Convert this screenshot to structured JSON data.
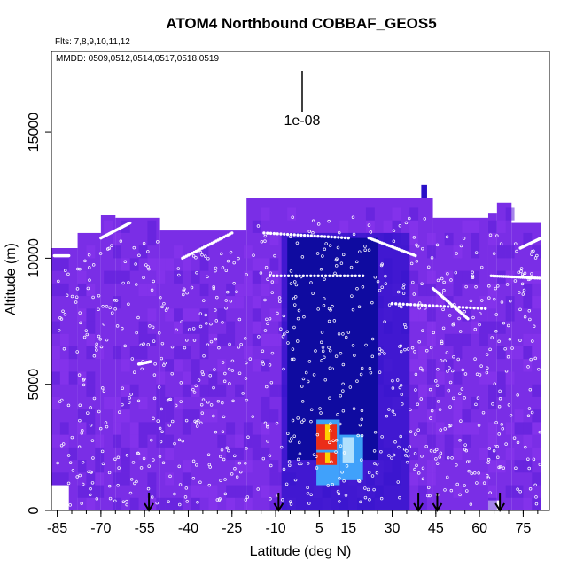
{
  "chart_data": {
    "type": "heatmap",
    "title": "ATOM4 Northbound COBBAF_GEOS5",
    "subtitle_flights": "Flts: 7,8,9,10,11,12",
    "subtitle_dates": "MMDD: 0509,0512,0514,0517,0518,0519",
    "scale_bar_label": "1e-08",
    "xlabel": "Latitude (deg N)",
    "ylabel": "Altitude (m)",
    "xlim": [
      -87,
      84
    ],
    "ylim": [
      0,
      18200
    ],
    "x_ticks": [
      -85,
      -70,
      -55,
      -40,
      -25,
      -10,
      5,
      15,
      30,
      45,
      60,
      75
    ],
    "x_tick_labels": [
      "-85",
      "-70",
      "-55",
      "-40",
      "-25",
      "-10",
      "5",
      "15",
      "30",
      "45",
      "60",
      "75"
    ],
    "x_minor_step": 5,
    "y_ticks": [
      0,
      5000,
      10000,
      15000
    ],
    "y_tick_labels": [
      "0",
      "5000",
      "10000",
      "15000"
    ],
    "grid": false,
    "colors": {
      "background_field": "#7a2ee6",
      "low": "#5b1fd9",
      "mid": "#2a10c8",
      "deep": "#0a0a9a",
      "high": "#40b0ff",
      "peak": "#ff2000",
      "sample_points": "#ffffff"
    },
    "column_tops_m": [
      [
        -87,
        -78,
        10400
      ],
      [
        -78,
        -70,
        11000
      ],
      [
        -70,
        -65,
        11700
      ],
      [
        -65,
        -50,
        11600
      ],
      [
        -50,
        -20,
        11100
      ],
      [
        -20,
        44,
        12400
      ],
      [
        44,
        63,
        11600
      ],
      [
        63,
        66,
        11800
      ],
      [
        66,
        71,
        12200
      ],
      [
        71,
        81,
        11400
      ]
    ],
    "enhancements": [
      {
        "lat": [
          -8,
          36
        ],
        "alt": [
          0,
          11000
        ],
        "level": "mid"
      },
      {
        "lat": [
          -6,
          25
        ],
        "alt": [
          2000,
          10800
        ],
        "level": "deep"
      },
      {
        "lat": [
          4,
          12
        ],
        "alt": [
          1000,
          3600
        ],
        "level": "high"
      },
      {
        "lat": [
          4,
          11
        ],
        "alt": [
          2400,
          3400
        ],
        "level": "peak"
      },
      {
        "lat": [
          4,
          11
        ],
        "alt": [
          1800,
          2300
        ],
        "level": "peak"
      },
      {
        "lat": [
          12,
          20
        ],
        "alt": [
          1200,
          3000
        ],
        "level": "high"
      }
    ],
    "flight_tracks": [
      {
        "lat": [
          -70,
          -60
        ],
        "alt": [
          10800,
          11400
        ]
      },
      {
        "lat": [
          -42,
          -25
        ],
        "alt": [
          10000,
          11000
        ]
      },
      {
        "lat": [
          -14,
          15
        ],
        "alt": [
          11000,
          10800
        ]
      },
      {
        "lat": [
          22,
          38
        ],
        "alt": [
          10800,
          10100
        ]
      },
      {
        "lat": [
          44,
          56
        ],
        "alt": [
          8800,
          7600
        ]
      },
      {
        "lat": [
          74,
          83
        ],
        "alt": [
          10400,
          10900
        ]
      },
      {
        "lat": [
          -86,
          -81
        ],
        "alt": [
          10100,
          10100
        ]
      },
      {
        "lat": [
          -57,
          -53
        ],
        "alt": [
          5800,
          5900
        ]
      },
      {
        "lat": [
          -12,
          20
        ],
        "alt": [
          9300,
          9300
        ]
      },
      {
        "lat": [
          30,
          62
        ],
        "alt": [
          8200,
          8000
        ]
      },
      {
        "lat": [
          64,
          82
        ],
        "alt": [
          9300,
          9200
        ]
      }
    ],
    "profile_arrows_lat": [
      -53.5,
      -9,
      39,
      45.5,
      67
    ]
  }
}
